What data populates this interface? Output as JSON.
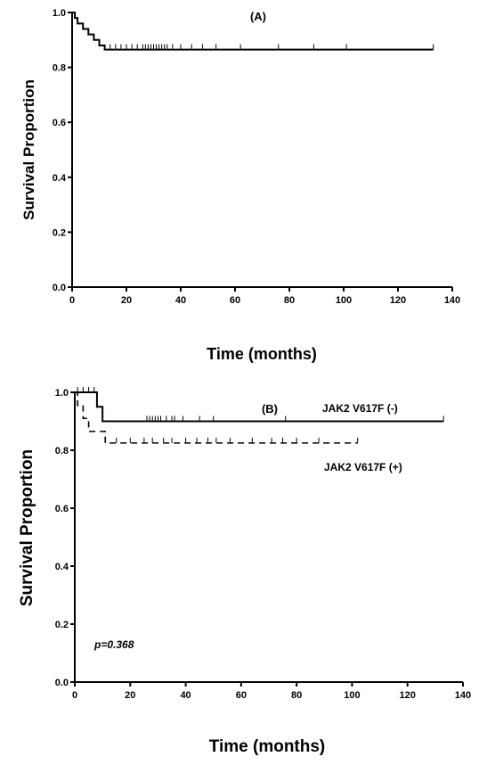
{
  "chart_data": [
    {
      "type": "line",
      "panel_label": "(A)",
      "xlabel": "Time (months)",
      "ylabel": "Survival Proportion",
      "xlim": [
        0,
        140
      ],
      "ylim": [
        0,
        1.0
      ],
      "x_ticks": [
        "0",
        "20",
        "40",
        "60",
        "80",
        "100",
        "120",
        "140"
      ],
      "y_ticks": [
        "0.0",
        "0.2",
        "0.4",
        "0.6",
        "0.8",
        "1.0"
      ],
      "series": [
        {
          "style": "solid",
          "steps": [
            [
              0,
              1.0
            ],
            [
              1,
              0.98
            ],
            [
              2,
              0.96
            ],
            [
              4,
              0.94
            ],
            [
              6,
              0.92
            ],
            [
              8,
              0.9
            ],
            [
              10,
              0.88
            ],
            [
              12,
              0.865
            ],
            [
              133,
              0.865
            ]
          ],
          "censored": [
            14,
            16,
            18,
            20,
            22,
            24,
            26,
            27,
            28,
            29,
            30,
            31,
            32,
            33,
            34,
            35,
            37,
            40,
            44,
            48,
            53,
            62,
            76,
            89,
            101,
            133
          ]
        }
      ]
    },
    {
      "type": "line",
      "panel_label": "(B)",
      "xlabel": "Time (months)",
      "ylabel": "Survival Proportion",
      "xlim": [
        0,
        140
      ],
      "ylim": [
        0,
        1.0
      ],
      "x_ticks": [
        "0",
        "20",
        "40",
        "60",
        "80",
        "100",
        "120",
        "140"
      ],
      "y_ticks": [
        "0.0",
        "0.2",
        "0.4",
        "0.6",
        "0.8",
        "1.0"
      ],
      "annotation": "p=0.368",
      "series": [
        {
          "name": "JAK2 V617F (-)",
          "style": "solid",
          "steps": [
            [
              0,
              1.0
            ],
            [
              8,
              0.95
            ],
            [
              10,
              0.9
            ],
            [
              133,
              0.9
            ]
          ],
          "censored": [
            1,
            3,
            5,
            7,
            26,
            27,
            28,
            29,
            30,
            31,
            33,
            35,
            36,
            39,
            45,
            50,
            76,
            133
          ]
        },
        {
          "name": "JAK2 V617F (+)",
          "style": "dashed",
          "steps": [
            [
              0,
              1.0
            ],
            [
              1,
              0.955
            ],
            [
              3,
              0.91
            ],
            [
              5,
              0.865
            ],
            [
              11,
              0.825
            ],
            [
              102,
              0.825
            ]
          ],
          "censored": [
            15,
            20,
            25,
            28,
            32,
            35,
            40,
            44,
            48,
            51,
            56,
            64,
            71,
            75,
            80,
            88,
            102
          ]
        }
      ]
    }
  ]
}
